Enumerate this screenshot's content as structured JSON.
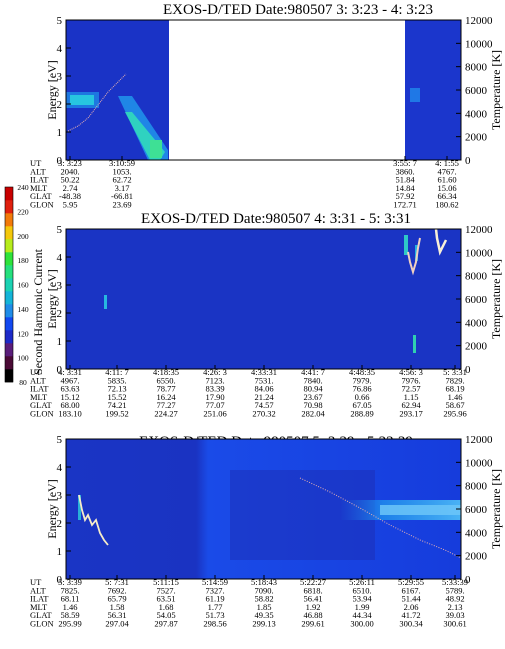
{
  "colorbar": {
    "label": "Second Harmonic Current",
    "ticks": [
      "80",
      "100",
      "120",
      "140",
      "160",
      "180",
      "200",
      "220",
      "240"
    ],
    "colors": [
      "#000000",
      "#4a0a35",
      "#5a1d7a",
      "#1d2ac8",
      "#1248f0",
      "#1f8ce8",
      "#14b4d8",
      "#1bd2b3",
      "#25e07d",
      "#2ee33b",
      "#b6ec1c",
      "#f4c80c",
      "#f27a0a",
      "#e0200e",
      "#c80000"
    ]
  },
  "panels": [
    {
      "title": "EXOS-D/TED   Date:980507  3: 3:23 - 4: 3:23",
      "ylabel": "Energy [eV]",
      "y2label": "Temperature [K]",
      "yticks": [
        "0",
        "1",
        "2",
        "3",
        "4",
        "5"
      ],
      "y2ticks": [
        "0",
        "2000",
        "4000",
        "6000",
        "8000",
        "10000",
        "12000"
      ],
      "ephem_labels": [
        "UT",
        "ALT",
        "ILAT",
        "MLT",
        "GLAT",
        "GLON"
      ],
      "ephem_cols": [
        [
          "3: 3:23",
          "2040.",
          "50.22",
          "2.74",
          "-48.38",
          "5.95"
        ],
        [
          "3:10:59",
          "1053.",
          "62.72",
          "3.17",
          "-66.81",
          "23.69"
        ],
        [
          "3:55: 7",
          "3860.",
          "51.84",
          "14.84",
          "57.92",
          "172.71"
        ],
        [
          "4: 1:55",
          "4767.",
          "61.60",
          "15.06",
          "66.34",
          "180.62"
        ]
      ]
    },
    {
      "title": "EXOS-D/TED   Date:980507  4: 3:31 - 5: 3:31",
      "ylabel": "Energy [eV]",
      "y2label": "Temperature [K]",
      "yticks": [
        "0",
        "1",
        "2",
        "3",
        "4",
        "5"
      ],
      "y2ticks": [
        "0",
        "2000",
        "4000",
        "6000",
        "8000",
        "10000",
        "12000"
      ],
      "ephem_labels": [
        "UT",
        "ALT",
        "ILAT",
        "MLT",
        "GLAT",
        "GLON"
      ],
      "ephem_cols": [
        [
          "4: 3:31",
          "4967.",
          "63.63",
          "15.12",
          "68.00",
          "183.10"
        ],
        [
          "4:11: 7",
          "5835.",
          "72.13",
          "15.52",
          "74.21",
          "199.52"
        ],
        [
          "4:18:35",
          "6550.",
          "78.77",
          "16.24",
          "77.27",
          "224.27"
        ],
        [
          "4:26: 3",
          "7123.",
          "83.39",
          "17.90",
          "77.07",
          "251.06"
        ],
        [
          "4:33:31",
          "7531.",
          "84.06",
          "21.24",
          "74.57",
          "270.32"
        ],
        [
          "4:41: 7",
          "7840.",
          "80.94",
          "23.67",
          "70.98",
          "282.04"
        ],
        [
          "4:48:35",
          "7979.",
          "76.86",
          "0.66",
          "67.05",
          "288.89"
        ],
        [
          "4:56: 3",
          "7976.",
          "72.57",
          "1.15",
          "62.94",
          "293.17"
        ],
        [
          "5: 3:31",
          "7829.",
          "68.19",
          "1.46",
          "58.67",
          "295.96"
        ]
      ]
    },
    {
      "title": "EXOS-D/TED   Date:980507  5: 3:39 - 5:33:39",
      "ylabel": "Energy [eV]",
      "y2label": "Temperature [K]",
      "yticks": [
        "0",
        "1",
        "2",
        "3",
        "4",
        "5"
      ],
      "y2ticks": [
        "0",
        "2000",
        "4000",
        "6000",
        "8000",
        "10000",
        "12000"
      ],
      "ephem_labels": [
        "UT",
        "ALT",
        "ILAT",
        "MLT",
        "GLAT",
        "GLON"
      ],
      "ephem_cols": [
        [
          "5: 3:39",
          "7825.",
          "68.11",
          "1.46",
          "58.59",
          "295.99"
        ],
        [
          "5: 7:31",
          "7692.",
          "65.79",
          "1.58",
          "56.31",
          "297.04"
        ],
        [
          "5:11:15",
          "7527.",
          "63.51",
          "1.68",
          "54.05",
          "297.87"
        ],
        [
          "5:14:59",
          "7327.",
          "61.19",
          "1.77",
          "51.73",
          "298.56"
        ],
        [
          "5:18:43",
          "7090.",
          "58.82",
          "1.85",
          "49.35",
          "299.13"
        ],
        [
          "5:22:27",
          "6818.",
          "56.41",
          "1.92",
          "46.88",
          "299.61"
        ],
        [
          "5:26:11",
          "6510.",
          "53.94",
          "1.99",
          "44.34",
          "300.00"
        ],
        [
          "5:29:55",
          "6167.",
          "51.44",
          "2.06",
          "41.72",
          "300.34"
        ],
        [
          "5:33:39",
          "5789.",
          "48.92",
          "2.13",
          "39.03",
          "300.61"
        ]
      ]
    }
  ],
  "chart_data": [
    {
      "type": "heatmap",
      "title": "EXOS-D/TED   Date:980507  3: 3:23 - 4: 3:23",
      "xlabel": "UT",
      "ylabel": "Energy [eV]",
      "y2label": "Temperature [K]",
      "ylim": [
        0,
        5
      ],
      "y2lim": [
        0,
        12000
      ],
      "x_ticks": [
        "3: 3:23",
        "3:10:59",
        "3:55: 7",
        "4: 1:55"
      ],
      "data_gap_ut": [
        "3:10:59",
        "3:55: 7"
      ],
      "temperature_series": {
        "x": [
          "3: 3:23",
          "3: 5:00",
          "3: 7:00",
          "3: 8:30",
          "3:10:00"
        ],
        "y": [
          2400,
          3500,
          4600,
          6000,
          7200
        ]
      }
    },
    {
      "type": "heatmap",
      "title": "EXOS-D/TED   Date:980507  4: 3:31 - 5: 3:31",
      "xlabel": "UT",
      "ylabel": "Energy [eV]",
      "y2label": "Temperature [K]",
      "ylim": [
        0,
        5
      ],
      "y2lim": [
        0,
        12000
      ],
      "x_ticks": [
        "4: 3:31",
        "4:11: 7",
        "4:18:35",
        "4:26: 3",
        "4:33:31",
        "4:41: 7",
        "4:48:35",
        "4:56: 3",
        "5: 3:31"
      ],
      "temperature_series": {
        "x": [
          "4:56: 3",
          "4:57: 0",
          "4:58: 0",
          "4:59: 0",
          "5: 0: 0",
          "5: 1: 0"
        ],
        "y": [
          10500,
          9400,
          8300,
          9800,
          11500,
          10800
        ]
      }
    },
    {
      "type": "heatmap",
      "title": "EXOS-D/TED   Date:980507  5: 3:39 - 5:33:39",
      "xlabel": "UT",
      "ylabel": "Energy [eV]",
      "y2label": "Temperature [K]",
      "ylim": [
        0,
        5
      ],
      "y2lim": [
        0,
        12000
      ],
      "x_ticks": [
        "5: 3:39",
        "5: 7:31",
        "5:11:15",
        "5:14:59",
        "5:18:43",
        "5:22:27",
        "5:26:11",
        "5:29:55",
        "5:33:39"
      ],
      "temperature_series": {
        "x": [
          "5: 3:39",
          "5: 4:40",
          "5: 5:30",
          "5: 6:20",
          "5: 7:10",
          "5:18:43",
          "5:22:27",
          "5:26:11",
          "5:29:55",
          "5:33:39"
        ],
        "y": [
          7000,
          6000,
          5100,
          4300,
          3500,
          5100,
          4500,
          3600,
          2700,
          1900
        ]
      }
    }
  ]
}
